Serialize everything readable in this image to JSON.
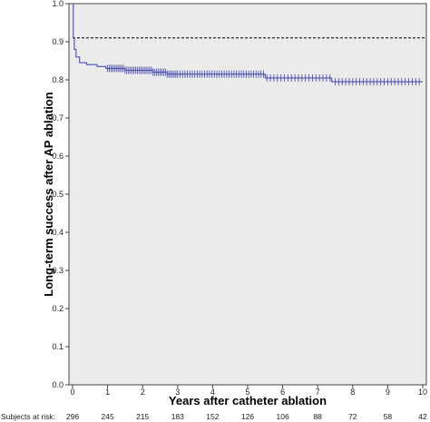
{
  "chart_data": {
    "type": "line",
    "xlabel": "Years after catheter ablation",
    "ylabel": "Long-term success after AP ablation",
    "xlim": [
      0,
      10
    ],
    "ylim": [
      0,
      1.0
    ],
    "x_ticks": [
      0,
      1,
      2,
      3,
      4,
      5,
      6,
      7,
      8,
      9,
      10
    ],
    "x_tick_labels": [
      "0",
      "1",
      "2",
      "3",
      "4",
      "5",
      "6",
      "7",
      "8",
      "9",
      "10"
    ],
    "y_ticks": [
      0,
      0.1,
      0.2,
      0.3,
      0.4,
      0.5,
      0.6,
      0.7,
      0.8,
      0.9,
      1.0
    ],
    "y_tick_labels": [
      "0.0",
      "0.1",
      "0.2",
      "0.3",
      "0.4",
      "0.5",
      "0.6",
      "0.7",
      "0.8",
      "0.9",
      "1.0"
    ],
    "grid": false,
    "background": "#ebebeb",
    "line_color": "#4a4fb0",
    "reference_line": {
      "y": 0.91,
      "style": "dashed",
      "color": "#000000"
    },
    "series": [
      {
        "step": true,
        "points": [
          {
            "x": 0,
            "y": 1.0
          },
          {
            "x": 0.02,
            "y": 0.91
          },
          {
            "x": 0.05,
            "y": 0.88
          },
          {
            "x": 0.1,
            "y": 0.86
          },
          {
            "x": 0.2,
            "y": 0.845
          },
          {
            "x": 0.4,
            "y": 0.84
          },
          {
            "x": 0.7,
            "y": 0.835
          },
          {
            "x": 0.95,
            "y": 0.83
          },
          {
            "x": 1.5,
            "y": 0.825
          },
          {
            "x": 2.3,
            "y": 0.82
          },
          {
            "x": 2.7,
            "y": 0.815
          },
          {
            "x": 5.5,
            "y": 0.805
          },
          {
            "x": 7.4,
            "y": 0.795
          },
          {
            "x": 10.0,
            "y": 0.795
          }
        ],
        "censor_ticks": [
          1.0,
          1.05,
          1.1,
          1.15,
          1.2,
          1.25,
          1.3,
          1.35,
          1.4,
          1.45,
          1.5,
          1.55,
          1.6,
          1.65,
          1.7,
          1.75,
          1.8,
          1.85,
          1.9,
          1.95,
          2.0,
          2.05,
          2.1,
          2.15,
          2.2,
          2.25,
          2.3,
          2.35,
          2.4,
          2.45,
          2.5,
          2.55,
          2.6,
          2.65,
          2.7,
          2.75,
          2.8,
          2.85,
          2.9,
          2.95,
          3.0,
          3.07,
          3.14,
          3.21,
          3.28,
          3.35,
          3.42,
          3.49,
          3.56,
          3.63,
          3.7,
          3.77,
          3.84,
          3.91,
          3.98,
          4.05,
          4.12,
          4.19,
          4.26,
          4.33,
          4.4,
          4.47,
          4.54,
          4.61,
          4.68,
          4.75,
          4.82,
          4.89,
          4.96,
          5.03,
          5.1,
          5.17,
          5.24,
          5.31,
          5.38,
          5.45,
          5.55,
          5.65,
          5.75,
          5.85,
          5.95,
          6.05,
          6.15,
          6.25,
          6.35,
          6.45,
          6.55,
          6.65,
          6.75,
          6.85,
          6.95,
          7.05,
          7.15,
          7.25,
          7.35,
          7.5,
          7.6,
          7.7,
          7.8,
          7.9,
          8.0,
          8.1,
          8.2,
          8.3,
          8.4,
          8.5,
          8.6,
          8.7,
          8.8,
          8.9,
          9.0,
          9.1,
          9.2,
          9.3,
          9.4,
          9.5,
          9.6,
          9.7,
          9.8,
          9.9
        ]
      }
    ],
    "risk_table": {
      "label": "Subjects at risk:",
      "x": [
        0,
        1,
        2,
        3,
        4,
        5,
        6,
        7,
        8,
        9,
        10
      ],
      "values": [
        "296",
        "245",
        "215",
        "183",
        "152",
        "126",
        "106",
        "88",
        "72",
        "58",
        "42"
      ]
    }
  }
}
